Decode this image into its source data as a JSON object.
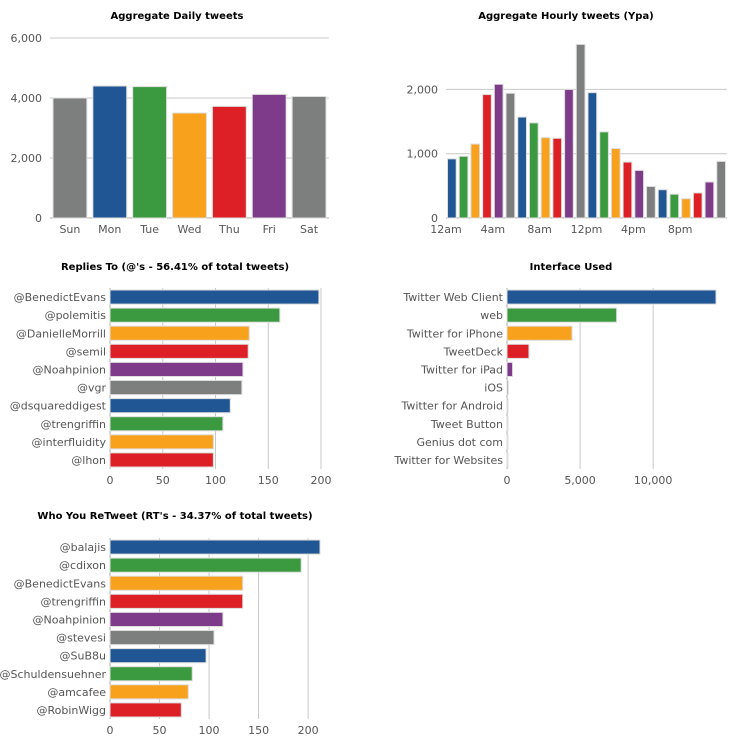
{
  "colors": {
    "blue": "#1f5693",
    "green": "#3b9a40",
    "orange": "#f8a11c",
    "red": "#dd2026",
    "purple": "#7d3b8a",
    "gray": "#7d7f7e"
  },
  "chart_data": [
    {
      "id": "daily",
      "type": "bar",
      "title": "Aggregate Daily tweets",
      "categories": [
        "Sun",
        "Mon",
        "Tue",
        "Wed",
        "Thu",
        "Fri",
        "Sat"
      ],
      "values": [
        4000,
        4400,
        4380,
        3500,
        3720,
        4120,
        4050
      ],
      "bar_colors": [
        "gray",
        "blue",
        "green",
        "orange",
        "red",
        "purple",
        "gray"
      ],
      "ylim": [
        0,
        6000
      ],
      "yticks": [
        0,
        2000,
        4000,
        6000
      ],
      "ytick_labels": [
        "0",
        "2,000",
        "4,000",
        "6,000"
      ],
      "grid": true
    },
    {
      "id": "hourly",
      "type": "bar",
      "title": "Aggregate Hourly tweets (Ypa)",
      "values": [
        920,
        960,
        1150,
        1920,
        2080,
        1940,
        1570,
        1480,
        1250,
        1240,
        2000,
        2700,
        1950,
        1340,
        1080,
        870,
        740,
        490,
        440,
        370,
        300,
        390,
        560,
        880
      ],
      "bar_colors": [
        "blue",
        "green",
        "orange",
        "red",
        "purple",
        "gray",
        "blue",
        "green",
        "orange",
        "red",
        "purple",
        "gray",
        "blue",
        "green",
        "orange",
        "red",
        "purple",
        "gray",
        "blue",
        "green",
        "orange",
        "red",
        "purple",
        "gray"
      ],
      "xtick_labels": [
        {
          "hour": 0,
          "label": "12am"
        },
        {
          "hour": 4,
          "label": "4am"
        },
        {
          "hour": 8,
          "label": "8am"
        },
        {
          "hour": 12,
          "label": "12pm"
        },
        {
          "hour": 16,
          "label": "4pm"
        },
        {
          "hour": 20,
          "label": "8pm"
        }
      ],
      "ylim": [
        0,
        2800
      ],
      "yticks": [
        0,
        1000,
        2000
      ],
      "ytick_labels": [
        "0",
        "1,000",
        "2,000"
      ],
      "grid": true
    },
    {
      "id": "replies",
      "type": "bar",
      "orientation": "horizontal",
      "title": "Replies To (@'s - 56.41% of total tweets)",
      "categories": [
        "@BenedictEvans",
        "@polemitis",
        "@DanielleMorrill",
        "@semil",
        "@Noahpinion",
        "@vgr",
        "@dsquareddigest",
        "@trengriffin",
        "@interfluidity",
        "@lhon"
      ],
      "values": [
        198,
        161,
        132,
        131,
        126,
        125,
        114,
        107,
        98,
        98
      ],
      "bar_colors": [
        "blue",
        "green",
        "orange",
        "red",
        "purple",
        "gray",
        "blue",
        "green",
        "orange",
        "red"
      ],
      "xlim": [
        0,
        200
      ],
      "xticks": [
        0,
        50,
        100,
        150,
        200
      ],
      "xtick_labels": [
        "0",
        "50",
        "100",
        "150",
        "200"
      ],
      "grid": true
    },
    {
      "id": "interface",
      "type": "bar",
      "orientation": "horizontal",
      "title": "Interface Used",
      "categories": [
        "Twitter Web Client",
        "web",
        "Twitter for iPhone",
        "TweetDeck",
        "Twitter for iPad",
        "iOS",
        "Twitter for Android",
        "Tweet Button",
        "Genius dot com",
        "Twitter for Websites"
      ],
      "values": [
        14300,
        7500,
        4450,
        1500,
        380,
        90,
        70,
        50,
        40,
        30
      ],
      "bar_colors": [
        "blue",
        "green",
        "orange",
        "red",
        "purple",
        "gray",
        "blue",
        "green",
        "orange",
        "red"
      ],
      "xlim": [
        0,
        14300
      ],
      "xticks": [
        0,
        5000,
        10000
      ],
      "xtick_labels": [
        "0",
        "5,000",
        "10,000"
      ],
      "grid": true
    },
    {
      "id": "retweets",
      "type": "bar",
      "orientation": "horizontal",
      "title": "Who You ReTweet (RT's - 34.37% of total tweets)",
      "categories": [
        "@balajis",
        "@cdixon",
        "@BenedictEvans",
        "@trengriffin",
        "@Noahpinion",
        "@stevesi",
        "@SuB8u",
        "@Schuldensuehner",
        "@amcafee",
        "@RobinWigg"
      ],
      "values": [
        212,
        193,
        134,
        134,
        114,
        105,
        97,
        83,
        79,
        72
      ],
      "bar_colors": [
        "blue",
        "green",
        "orange",
        "red",
        "purple",
        "gray",
        "blue",
        "green",
        "orange",
        "red"
      ],
      "xlim": [
        0,
        212
      ],
      "xticks": [
        0,
        50,
        100,
        150,
        200
      ],
      "xtick_labels": [
        "0",
        "50",
        "100",
        "150",
        "200"
      ],
      "grid": true
    }
  ]
}
